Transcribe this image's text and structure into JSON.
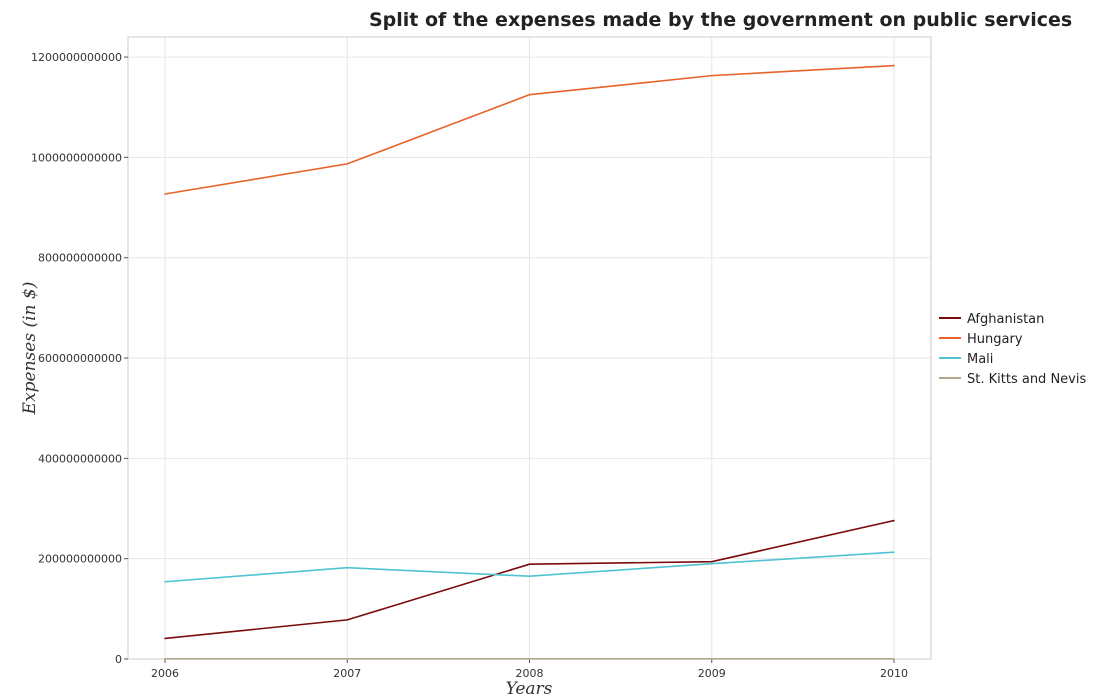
{
  "chart_data": {
    "type": "line",
    "title": "Split of the expenses made by the government on public services",
    "xlabel": "Years",
    "ylabel": "Expenses (in $)",
    "x": [
      "2006",
      "2007",
      "2008",
      "2009",
      "2010"
    ],
    "ylim": [
      0,
      1240000000000
    ],
    "yticks": [
      0,
      200000000000,
      400000000000,
      600000000000,
      800000000000,
      1000000000000,
      1200000000000
    ],
    "ytick_labels": [
      "0",
      "200000000000",
      "400000000000",
      "600000000000",
      "800000000000",
      "1000000000000",
      "1200000000000"
    ],
    "grid": true,
    "legend_position": "right",
    "series": [
      {
        "name": "Afghanistan",
        "color": "#7b0a0a",
        "values": [
          41000000000,
          78000000000,
          189000000000,
          194000000000,
          276000000000
        ]
      },
      {
        "name": "Hungary",
        "color": "#e8622a",
        "values": [
          927000000000,
          987000000000,
          1125000000000,
          1163000000000,
          1183000000000
        ]
      },
      {
        "name": "Mali",
        "color": "#4fc3d0",
        "values": [
          154000000000,
          182000000000,
          165000000000,
          190000000000,
          213000000000
        ]
      },
      {
        "name": "St. Kitts and Nevis",
        "color": "#b0a58f",
        "values": [
          300000000,
          320000000,
          340000000,
          330000000,
          350000000
        ]
      }
    ]
  }
}
